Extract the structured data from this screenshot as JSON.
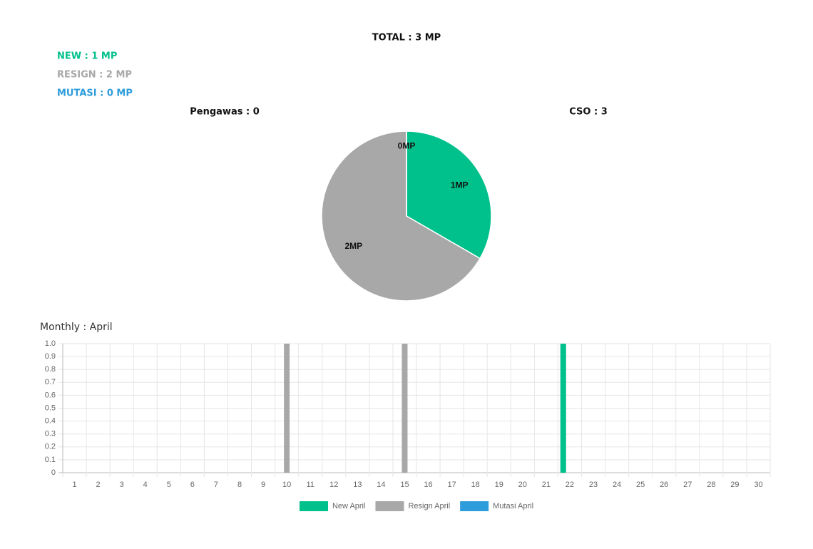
{
  "summary": {
    "total": "TOTAL : 3 MP",
    "new": "NEW : 1 MP",
    "resign": "RESIGN : 2 MP",
    "mutasi": "MUTASI : 0 MP",
    "pengawas": "Pengawas : 0",
    "cso": "CSO : 3"
  },
  "chart_data": [
    {
      "type": "pie",
      "values": [
        1,
        2,
        0
      ],
      "value_labels": [
        "1MP",
        "2MP",
        "0MP"
      ],
      "colors": [
        "#00c08b",
        "#a8a8a8",
        "#2d9cdb"
      ]
    },
    {
      "type": "bar",
      "title": "Monthly : April",
      "categories": [
        "1",
        "2",
        "3",
        "4",
        "5",
        "6",
        "7",
        "8",
        "9",
        "10",
        "11",
        "12",
        "13",
        "14",
        "15",
        "16",
        "17",
        "18",
        "19",
        "20",
        "21",
        "22",
        "23",
        "24",
        "25",
        "26",
        "27",
        "28",
        "29",
        "30"
      ],
      "series": [
        {
          "name": "New April",
          "color": "#00c08b",
          "values": [
            0,
            0,
            0,
            0,
            0,
            0,
            0,
            0,
            0,
            0,
            0,
            0,
            0,
            0,
            0,
            0,
            0,
            0,
            0,
            0,
            0,
            1,
            0,
            0,
            0,
            0,
            0,
            0,
            0,
            0
          ]
        },
        {
          "name": "Resign April",
          "color": "#a8a8a8",
          "values": [
            0,
            0,
            0,
            0,
            0,
            0,
            0,
            0,
            0,
            1,
            0,
            0,
            0,
            0,
            1,
            0,
            0,
            0,
            0,
            0,
            0,
            0,
            0,
            0,
            0,
            0,
            0,
            0,
            0,
            0
          ]
        },
        {
          "name": "Mutasi April",
          "color": "#2d9cdb",
          "values": [
            0,
            0,
            0,
            0,
            0,
            0,
            0,
            0,
            0,
            0,
            0,
            0,
            0,
            0,
            0,
            0,
            0,
            0,
            0,
            0,
            0,
            0,
            0,
            0,
            0,
            0,
            0,
            0,
            0,
            0
          ]
        }
      ],
      "ylim": [
        0,
        1
      ],
      "yticks": [
        0,
        0.1,
        0.2,
        0.3,
        0.4,
        0.5,
        0.6,
        0.7,
        0.8,
        0.9,
        {
          "value": 1,
          "label": "1.0"
        }
      ],
      "grid": true,
      "legend": "bottom"
    }
  ]
}
